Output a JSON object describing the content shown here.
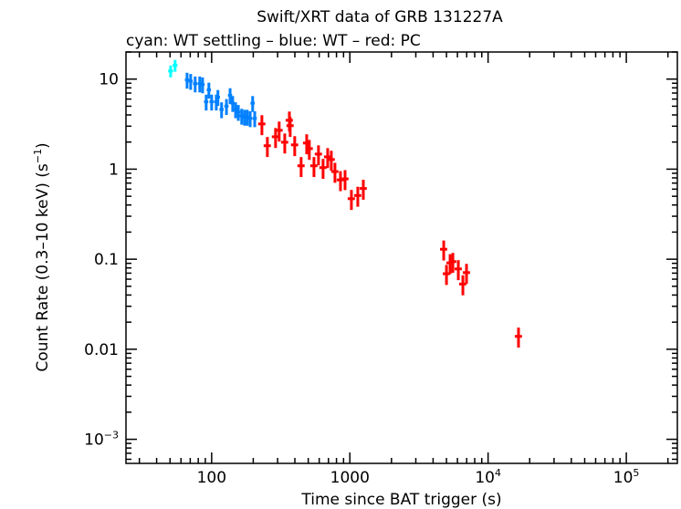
{
  "chart_data": {
    "type": "scatter",
    "title": "Swift/XRT data of GRB 131227A",
    "subtitle": "cyan: WT settling – blue: WT – red: PC",
    "xlabel": "Time since BAT trigger (s)",
    "ylabel": "Count Rate (0.3–10 keV) (s",
    "ylabel_sup": "−1",
    "ylabel_end": ")",
    "x_scale": "log",
    "y_scale": "log",
    "xlim": [
      24,
      234000
    ],
    "ylim": [
      0.00054,
      20
    ],
    "x_ticks": [
      {
        "v": 100,
        "label": "100"
      },
      {
        "v": 1000,
        "label": "1000"
      },
      {
        "v": 10000,
        "label": "10",
        "sup": "4"
      },
      {
        "v": 100000,
        "label": "10",
        "sup": "5"
      }
    ],
    "y_ticks": [
      {
        "v": 0.001,
        "label": "10",
        "sup": "−3"
      },
      {
        "v": 0.01,
        "label": "0.01"
      },
      {
        "v": 0.1,
        "label": "0.1"
      },
      {
        "v": 1,
        "label": "1"
      },
      {
        "v": 10,
        "label": "10"
      }
    ],
    "grid": false,
    "series": [
      {
        "name": "WT settling",
        "color": "#00ffff",
        "x_err_frac": 0.04,
        "y_err_frac": 0.15,
        "points": [
          [
            50.5,
            12.3
          ],
          [
            54.4,
            14.2
          ]
        ]
      },
      {
        "name": "WT",
        "color": "#0080ff",
        "x_err_frac": 0.035,
        "y_err_frac": 0.2,
        "points": [
          [
            66.4,
            9.8
          ],
          [
            70.5,
            9.5
          ],
          [
            76,
            8.9
          ],
          [
            82,
            8.9
          ],
          [
            86,
            8.7
          ],
          [
            91.3,
            5.6
          ],
          [
            95.5,
            7.6
          ],
          [
            100,
            5.6
          ],
          [
            108,
            5.6
          ],
          [
            111,
            6.3
          ],
          [
            118,
            4.6
          ],
          [
            128,
            5.0
          ],
          [
            136,
            6.6
          ],
          [
            142,
            5.4
          ],
          [
            149,
            4.6
          ],
          [
            156,
            4.3
          ],
          [
            165,
            3.9
          ],
          [
            173,
            3.8
          ],
          [
            181,
            3.8
          ],
          [
            190,
            3.66
          ],
          [
            198,
            5.4
          ],
          [
            205,
            3.66
          ]
        ]
      },
      {
        "name": "PC",
        "color": "#ff0000",
        "x_err_frac": 0.06,
        "y_err_frac": 0.25,
        "points": [
          [
            231,
            3.18
          ],
          [
            253,
            1.82
          ],
          [
            290,
            2.29
          ],
          [
            308,
            2.7
          ],
          [
            338,
            1.99
          ],
          [
            365,
            3.49
          ],
          [
            370,
            3.04
          ],
          [
            399,
            1.86
          ],
          [
            444,
            1.09
          ],
          [
            487,
            1.95
          ],
          [
            509,
            1.69
          ],
          [
            550,
            1.09
          ],
          [
            593,
            1.47
          ],
          [
            640,
            1.04
          ],
          [
            691,
            1.37
          ],
          [
            734,
            1.28
          ],
          [
            780,
            0.94
          ],
          [
            855,
            0.76
          ],
          [
            923,
            0.78
          ],
          [
            1026,
            0.47
          ],
          [
            1141,
            0.51
          ],
          [
            1251,
            0.61
          ],
          [
            4775,
            0.129
          ],
          [
            5000,
            0.069
          ],
          [
            5310,
            0.091
          ],
          [
            5560,
            0.094
          ],
          [
            6090,
            0.078
          ],
          [
            6570,
            0.053
          ],
          [
            6980,
            0.071
          ],
          [
            16600,
            0.0139
          ]
        ]
      }
    ]
  }
}
